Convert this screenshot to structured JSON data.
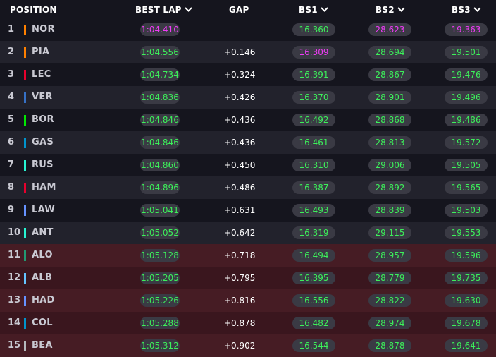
{
  "colors": {
    "green": "#3cf05a",
    "purple": "#ee3cf5",
    "row_dark": "#15151e",
    "row_light": "#22222c",
    "row_red_dark": "#3a161e",
    "row_red_light": "#461c24",
    "pill": "#3a3a44"
  },
  "header": {
    "position": "POSITION",
    "best_lap": "BEST LAP",
    "gap": "GAP",
    "bs1": "BS1",
    "bs2": "BS2",
    "bs3": "BS3",
    "sort_icon": "chevron-down-icon"
  },
  "rows": [
    {
      "pos": "1",
      "code": "NOR",
      "team_color": "#ff8000",
      "best_lap": "1:04.410",
      "best_lap_color": "purple",
      "gap": "",
      "bs1": "16.360",
      "bs1_color": "green",
      "bs2": "28.623",
      "bs2_color": "purple",
      "bs3": "19.363",
      "bs3_color": "purple",
      "zone": "normal"
    },
    {
      "pos": "2",
      "code": "PIA",
      "team_color": "#ff8000",
      "best_lap": "1:04.556",
      "best_lap_color": "green",
      "gap": "+0.146",
      "bs1": "16.309",
      "bs1_color": "purple",
      "bs2": "28.694",
      "bs2_color": "green",
      "bs3": "19.501",
      "bs3_color": "green",
      "zone": "normal"
    },
    {
      "pos": "3",
      "code": "LEC",
      "team_color": "#e8002d",
      "best_lap": "1:04.734",
      "best_lap_color": "green",
      "gap": "+0.324",
      "bs1": "16.391",
      "bs1_color": "green",
      "bs2": "28.867",
      "bs2_color": "green",
      "bs3": "19.476",
      "bs3_color": "green",
      "zone": "normal"
    },
    {
      "pos": "4",
      "code": "VER",
      "team_color": "#3671c6",
      "best_lap": "1:04.836",
      "best_lap_color": "green",
      "gap": "+0.426",
      "bs1": "16.370",
      "bs1_color": "green",
      "bs2": "28.901",
      "bs2_color": "green",
      "bs3": "19.496",
      "bs3_color": "green",
      "zone": "normal"
    },
    {
      "pos": "5",
      "code": "BOR",
      "team_color": "#00e701",
      "best_lap": "1:04.846",
      "best_lap_color": "green",
      "gap": "+0.436",
      "bs1": "16.492",
      "bs1_color": "green",
      "bs2": "28.868",
      "bs2_color": "green",
      "bs3": "19.486",
      "bs3_color": "green",
      "zone": "normal"
    },
    {
      "pos": "6",
      "code": "GAS",
      "team_color": "#0093cc",
      "best_lap": "1:04.846",
      "best_lap_color": "green",
      "gap": "+0.436",
      "bs1": "16.461",
      "bs1_color": "green",
      "bs2": "28.813",
      "bs2_color": "green",
      "bs3": "19.572",
      "bs3_color": "green",
      "zone": "normal"
    },
    {
      "pos": "7",
      "code": "RUS",
      "team_color": "#27f4d2",
      "best_lap": "1:04.860",
      "best_lap_color": "green",
      "gap": "+0.450",
      "bs1": "16.310",
      "bs1_color": "green",
      "bs2": "29.006",
      "bs2_color": "green",
      "bs3": "19.505",
      "bs3_color": "green",
      "zone": "normal"
    },
    {
      "pos": "8",
      "code": "HAM",
      "team_color": "#e8002d",
      "best_lap": "1:04.896",
      "best_lap_color": "green",
      "gap": "+0.486",
      "bs1": "16.387",
      "bs1_color": "green",
      "bs2": "28.892",
      "bs2_color": "green",
      "bs3": "19.565",
      "bs3_color": "green",
      "zone": "normal"
    },
    {
      "pos": "9",
      "code": "LAW",
      "team_color": "#6692ff",
      "best_lap": "1:05.041",
      "best_lap_color": "green",
      "gap": "+0.631",
      "bs1": "16.493",
      "bs1_color": "green",
      "bs2": "28.839",
      "bs2_color": "green",
      "bs3": "19.503",
      "bs3_color": "green",
      "zone": "normal"
    },
    {
      "pos": "10",
      "code": "ANT",
      "team_color": "#27f4d2",
      "best_lap": "1:05.052",
      "best_lap_color": "green",
      "gap": "+0.642",
      "bs1": "16.319",
      "bs1_color": "green",
      "bs2": "29.115",
      "bs2_color": "green",
      "bs3": "19.553",
      "bs3_color": "green",
      "zone": "normal"
    },
    {
      "pos": "11",
      "code": "ALO",
      "team_color": "#229971",
      "best_lap": "1:05.128",
      "best_lap_color": "green",
      "gap": "+0.718",
      "bs1": "16.494",
      "bs1_color": "green",
      "bs2": "28.957",
      "bs2_color": "green",
      "bs3": "19.596",
      "bs3_color": "green",
      "zone": "eliminated"
    },
    {
      "pos": "12",
      "code": "ALB",
      "team_color": "#64c4ff",
      "best_lap": "1:05.205",
      "best_lap_color": "green",
      "gap": "+0.795",
      "bs1": "16.395",
      "bs1_color": "green",
      "bs2": "28.779",
      "bs2_color": "green",
      "bs3": "19.735",
      "bs3_color": "green",
      "zone": "eliminated"
    },
    {
      "pos": "13",
      "code": "HAD",
      "team_color": "#6692ff",
      "best_lap": "1:05.226",
      "best_lap_color": "green",
      "gap": "+0.816",
      "bs1": "16.556",
      "bs1_color": "green",
      "bs2": "28.822",
      "bs2_color": "green",
      "bs3": "19.630",
      "bs3_color": "green",
      "zone": "eliminated"
    },
    {
      "pos": "14",
      "code": "COL",
      "team_color": "#0093cc",
      "best_lap": "1:05.288",
      "best_lap_color": "green",
      "gap": "+0.878",
      "bs1": "16.482",
      "bs1_color": "green",
      "bs2": "28.974",
      "bs2_color": "green",
      "bs3": "19.678",
      "bs3_color": "green",
      "zone": "eliminated"
    },
    {
      "pos": "15",
      "code": "BEA",
      "team_color": "#b6babd",
      "best_lap": "1:05.312",
      "best_lap_color": "green",
      "gap": "+0.902",
      "bs1": "16.544",
      "bs1_color": "green",
      "bs2": "28.878",
      "bs2_color": "green",
      "bs3": "19.641",
      "bs3_color": "green",
      "zone": "eliminated"
    }
  ]
}
